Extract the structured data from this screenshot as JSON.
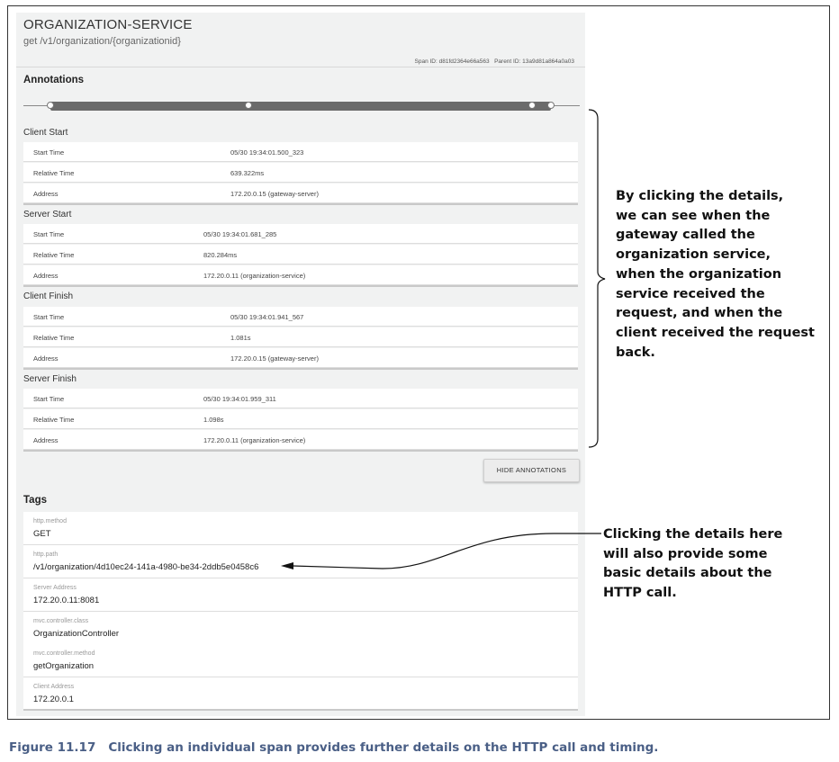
{
  "span": {
    "service_name": "ORGANIZATION-SERVICE",
    "path": "get /v1/organization/{organizationid}",
    "span_id_text": "Span ID: d81fd2364e66a563",
    "parent_id_text": "Parent ID: 13a9d81a864a0a03"
  },
  "annotations": {
    "heading": "Annotations",
    "groups": [
      {
        "label": "Client Start",
        "rows": [
          {
            "key": "Start Time",
            "value": "05/30 19:34:01.500_323"
          },
          {
            "key": "Relative Time",
            "value": "639.322ms"
          },
          {
            "key": "Address",
            "value": "172.20.0.15 (gateway-server)"
          }
        ]
      },
      {
        "label": "Server Start",
        "rows": [
          {
            "key": "Start Time",
            "value": "05/30 19:34:01.681_285"
          },
          {
            "key": "Relative Time",
            "value": "820.284ms"
          },
          {
            "key": "Address",
            "value": "172.20.0.11 (organization-service)"
          }
        ]
      },
      {
        "label": "Client Finish",
        "rows": [
          {
            "key": "Start Time",
            "value": "05/30 19:34:01.941_567"
          },
          {
            "key": "Relative Time",
            "value": "1.081s"
          },
          {
            "key": "Address",
            "value": "172.20.0.15 (gateway-server)"
          }
        ]
      },
      {
        "label": "Server Finish",
        "rows": [
          {
            "key": "Start Time",
            "value": "05/30 19:34:01.959_311"
          },
          {
            "key": "Relative Time",
            "value": "1.098s"
          },
          {
            "key": "Address",
            "value": "172.20.0.11 (organization-service)"
          }
        ]
      }
    ],
    "hide_button_label": "HIDE ANNOTATIONS"
  },
  "tags": {
    "heading": "Tags",
    "items": [
      {
        "key": "http.method",
        "value": "GET"
      },
      {
        "key": "http.path",
        "value": "/v1/organization/4d10ec24-141a-4980-be34-2ddb5e0458c6"
      },
      {
        "key": "Server Address",
        "value": "172.20.0.11:8081"
      },
      {
        "key": "mvc.controller.class",
        "value": "OrganizationController"
      },
      {
        "key": "mvc.controller.method",
        "value": "getOrganization"
      },
      {
        "key": "Client Address",
        "value": "172.20.0.1"
      }
    ]
  },
  "callouts": {
    "annotations_lines": [
      "By clicking the details,",
      "we can see when the",
      "gateway called the",
      "organization service,",
      "when the organization",
      "service received the",
      "request, and when the",
      "client received the request",
      "back."
    ],
    "tags_lines": [
      "Clicking the details here",
      "will also provide some",
      "basic details about the",
      "HTTP call."
    ]
  },
  "caption": {
    "figure_number": "Figure 11.17",
    "text": "Clicking an individual span provides further details on the HTTP call and timing."
  },
  "colors": {
    "panel_bg": "#f1f2f2",
    "timeline_bar": "#6b6b6b",
    "caption": "#4a5f86"
  }
}
